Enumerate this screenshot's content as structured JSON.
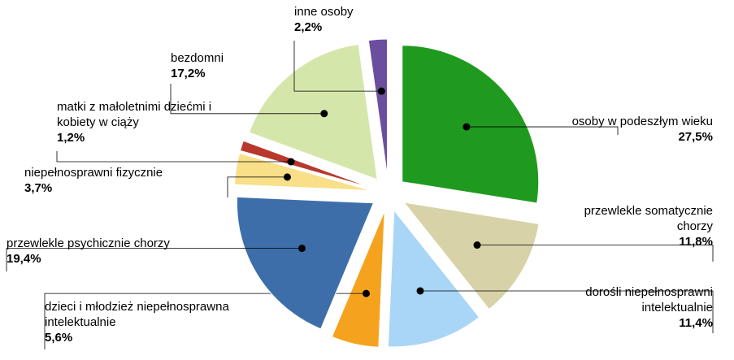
{
  "chart_data": {
    "type": "pie",
    "categories": [
      "osoby w podeszłym wieku",
      "przewlekle somatycznie chorzy",
      "dorośli niepełnosprawni intelektualnie",
      "dzieci i młodzież niepełnosprawna intelektualnie",
      "przewlekle psychicznie chorzy",
      "niepełnosprawni fizycznie",
      "matki z małoletnimi dziećmi i kobiety w ciąży",
      "bezdomni",
      "inne osoby"
    ],
    "values": [
      27.5,
      11.8,
      11.4,
      5.6,
      19.4,
      3.7,
      1.2,
      17.2,
      2.2
    ],
    "value_labels": [
      "27,5%",
      "11,8%",
      "11,4%",
      "5,6%",
      "19,4%",
      "3,7%",
      "1,2%",
      "17,2%",
      "2,2%"
    ],
    "colors": [
      "#1f9a1f",
      "#d8d2a8",
      "#a9d5f6",
      "#f5a31e",
      "#3d6ea9",
      "#f8df88",
      "#b8382d",
      "#d5e6ab",
      "#6b4f9e"
    ]
  }
}
